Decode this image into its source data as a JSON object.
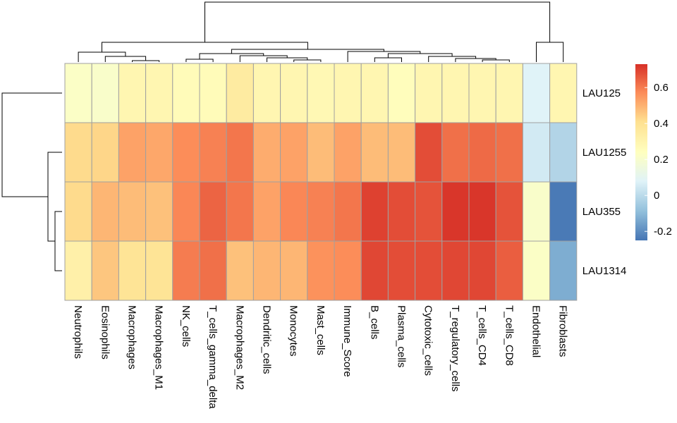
{
  "chart_data": {
    "type": "heatmap",
    "title": "",
    "xlabel": "",
    "ylabel": "",
    "columns": [
      "Neutrophils",
      "Eosinophils",
      "Macrophages",
      "Macrophages_M1",
      "NK_cells",
      "T_cells_gamma_delta",
      "Macrophages_M2",
      "Dendritic_cells",
      "Monocytes",
      "Mast_cells",
      "Immune_Score",
      "B_cells",
      "Plasma_cells",
      "Cytotoxic_cells",
      "T_regulatory_cells",
      "T_cells_CD4",
      "T_cells_CD8",
      "Endothelial",
      "Fibroblasts"
    ],
    "rows": [
      "LAU125",
      "LAU1255",
      "LAU355",
      "LAU1314"
    ],
    "values": [
      [
        0.22,
        0.21,
        0.29,
        0.29,
        0.26,
        0.26,
        0.35,
        0.29,
        0.29,
        0.28,
        0.29,
        0.29,
        0.25,
        0.29,
        0.29,
        0.29,
        0.29,
        0.08,
        0.29
      ],
      [
        0.42,
        0.43,
        0.53,
        0.52,
        0.57,
        0.59,
        0.61,
        0.51,
        0.53,
        0.48,
        0.53,
        0.48,
        0.48,
        0.68,
        0.62,
        0.63,
        0.62,
        0.05,
        -0.02
      ],
      [
        0.42,
        0.49,
        0.48,
        0.47,
        0.58,
        0.64,
        0.61,
        0.53,
        0.58,
        0.59,
        0.61,
        0.7,
        0.68,
        0.67,
        0.72,
        0.72,
        0.67,
        0.21,
        -0.24
      ],
      [
        0.32,
        0.46,
        0.39,
        0.39,
        0.6,
        0.62,
        0.47,
        0.49,
        0.49,
        0.56,
        0.57,
        0.69,
        0.68,
        0.68,
        0.69,
        0.69,
        0.65,
        0.22,
        -0.13
      ]
    ],
    "color_scale": {
      "min": -0.25,
      "max": 0.73,
      "stops": [
        {
          "value": -0.25,
          "color": "#4575b4"
        },
        {
          "value": -0.09,
          "color": "#91bfdb"
        },
        {
          "value": 0.08,
          "color": "#e0f3f8"
        },
        {
          "value": 0.24,
          "color": "#ffffbf"
        },
        {
          "value": 0.41,
          "color": "#fee090"
        },
        {
          "value": 0.57,
          "color": "#fc8d59"
        },
        {
          "value": 0.73,
          "color": "#d73027"
        }
      ],
      "ticks": [
        -0.2,
        0,
        0.2,
        0.4,
        0.6
      ],
      "tick_labels": [
        "-0.2",
        "0",
        "0.2",
        "0.4",
        "0.6"
      ]
    },
    "column_dendrogram": true,
    "row_dendrogram": true,
    "legend_position": "right",
    "grid": true,
    "cell_border_color": "#a0a0a0",
    "dendrogram_color": "#000000"
  }
}
